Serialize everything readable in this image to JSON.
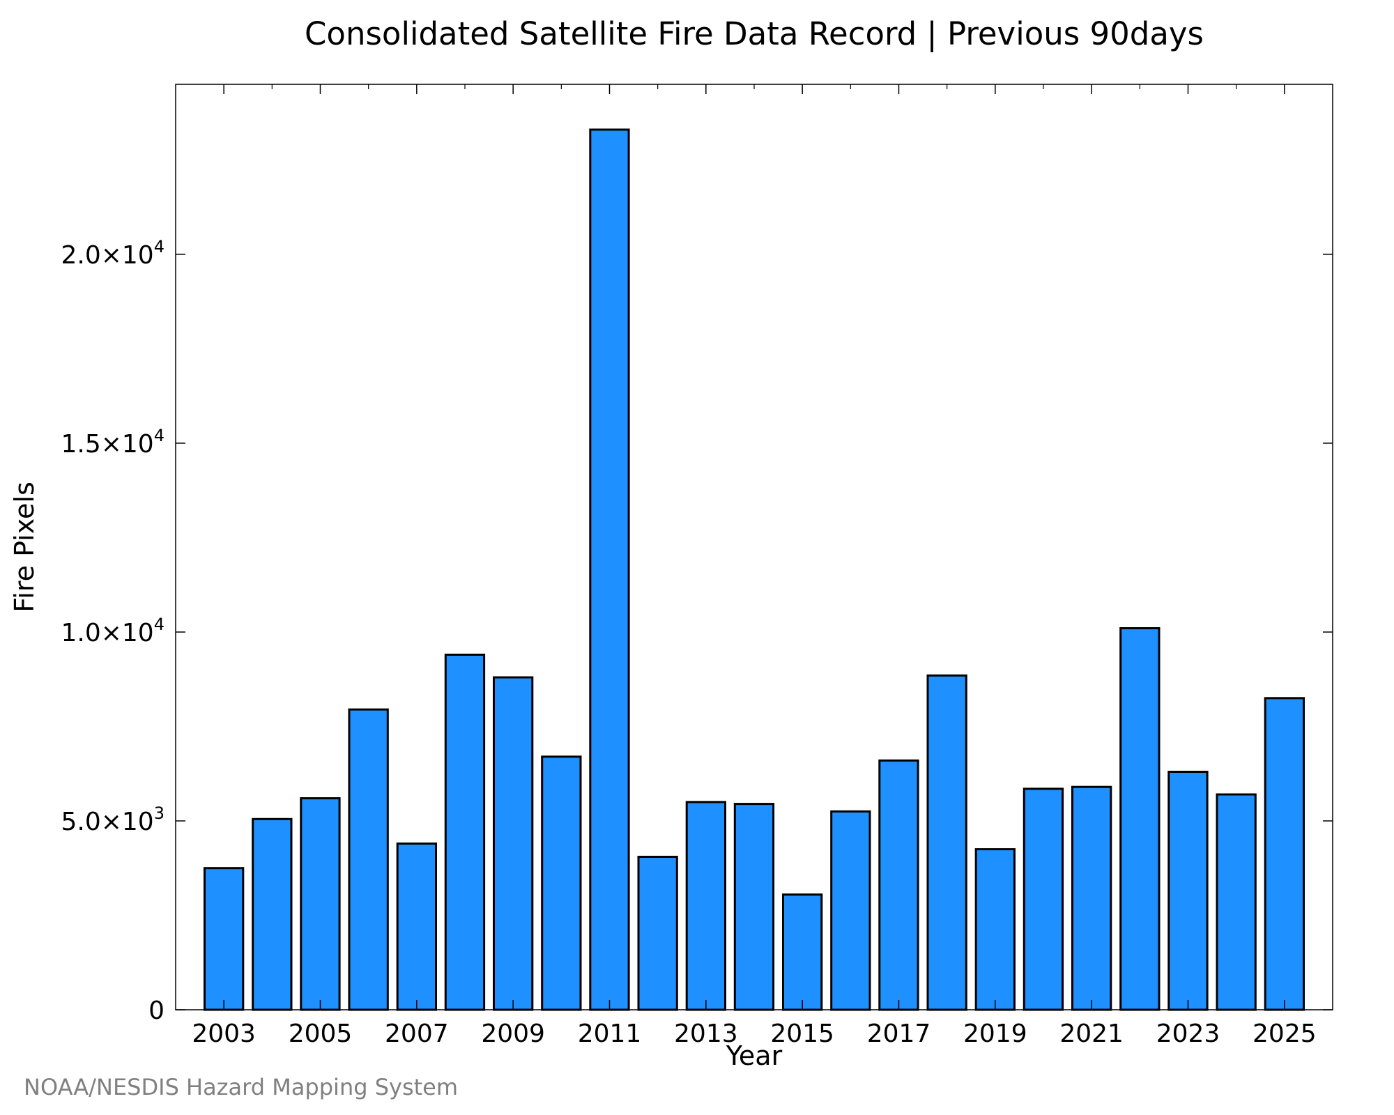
{
  "chart_data": {
    "type": "bar",
    "title": "Consolidated Satellite Fire Data Record | Previous 90days",
    "xlabel": "Year",
    "ylabel": "Fire Pixels",
    "categories": [
      "2003",
      "2004",
      "2005",
      "2006",
      "2007",
      "2008",
      "2009",
      "2010",
      "2011",
      "2012",
      "2013",
      "2014",
      "2015",
      "2016",
      "2017",
      "2018",
      "2019",
      "2020",
      "2021",
      "2022",
      "2023",
      "2024",
      "2025"
    ],
    "values": [
      3750,
      5050,
      5600,
      7950,
      4400,
      9400,
      8800,
      6700,
      23300,
      4050,
      5500,
      5450,
      3050,
      5250,
      6600,
      8850,
      4250,
      5850,
      5900,
      10100,
      6300,
      5700,
      8250
    ],
    "x_tick_labels": [
      "2003",
      "2005",
      "2007",
      "2009",
      "2011",
      "2013",
      "2015",
      "2017",
      "2019",
      "2021",
      "2023",
      "2025"
    ],
    "y_ticks": [
      {
        "value": 0,
        "mantissa": "0",
        "exponent": ""
      },
      {
        "value": 5000,
        "mantissa": "5.0×10",
        "exponent": "3"
      },
      {
        "value": 10000,
        "mantissa": "1.0×10",
        "exponent": "4"
      },
      {
        "value": 15000,
        "mantissa": "1.5×10",
        "exponent": "4"
      },
      {
        "value": 20000,
        "mantissa": "2.0×10",
        "exponent": "4"
      }
    ],
    "ylim": [
      0,
      24500
    ],
    "xlim": [
      2002.0,
      2026.0
    ],
    "grid": false,
    "bar_color": "#1e90ff",
    "edge_color": "#000000"
  },
  "credit": "NOAA/NESDIS Hazard Mapping System"
}
